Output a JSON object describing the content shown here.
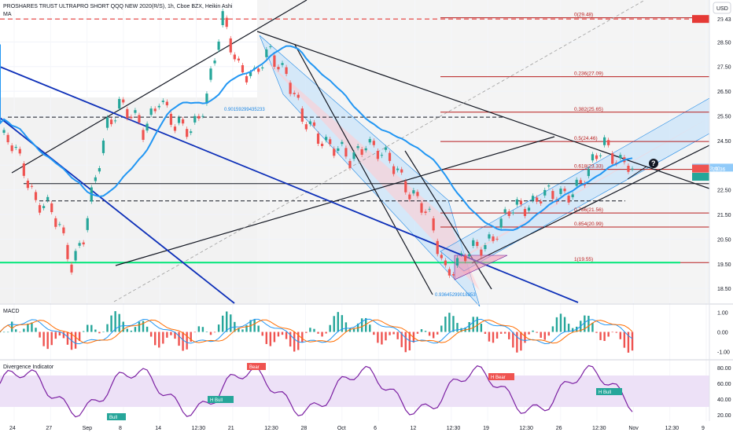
{
  "header": {
    "title": "PROSHARES TRUST ULTRAPRO SHORT QQQ NEW 2020(R/S), 1h, Cboe BZX, Heikin Ashi",
    "indicator": "MA",
    "currency": "USD"
  },
  "colors": {
    "up": "#26a69a",
    "down": "#ef5350",
    "ma": "#2196f3",
    "fib": "#b71c1c",
    "channel": "#1e88e5",
    "support": "#00e676",
    "trend_blue": "#0d2fb8",
    "rsi": "#7b1fa2",
    "band": "#ede1f7",
    "macd_line": "#2196f3",
    "signal_line": "#ff6d00"
  },
  "chart_data": [
    {
      "type": "line",
      "name": "price",
      "scale": "right",
      "ylim": [
        17.9,
        30.2
      ],
      "y_ticks": [
        "29.43",
        "28.50",
        "27.50",
        "26.50",
        "25.50",
        "24.50",
        "23.50",
        "22.50",
        "21.50",
        "20.50",
        "19.50",
        "18.50"
      ],
      "x_ticks": [
        "24",
        "27",
        "Sep",
        "8",
        "14",
        "12:30",
        "21",
        "12:30",
        "28",
        "Oct",
        "6",
        "12",
        "12:30",
        "19",
        "12:30",
        "26",
        "12:30",
        "Nov",
        "12:30",
        "9"
      ],
      "x": [
        0,
        3,
        6,
        9,
        12,
        15,
        18,
        21,
        24,
        27,
        30,
        33,
        36,
        40,
        44,
        48,
        52,
        56,
        60,
        64,
        68,
        72,
        76,
        80,
        84,
        88,
        92,
        96,
        100,
        104,
        108,
        112,
        116,
        120,
        124,
        128,
        132,
        136,
        140,
        144,
        148,
        152,
        156,
        159
      ],
      "values": [
        24.6,
        24.2,
        23.4,
        22.1,
        21.7,
        20.9,
        19.6,
        20.6,
        22.8,
        25.2,
        26.1,
        25.4,
        24.8,
        26.4,
        24.9,
        25.0,
        26.3,
        29.3,
        27.6,
        27.0,
        28.1,
        27.3,
        25.2,
        24.8,
        24.2,
        23.6,
        24.6,
        23.8,
        23.3,
        22.3,
        21.2,
        19.3,
        19.6,
        20.1,
        20.7,
        21.5,
        21.9,
        22.3,
        22.1,
        22.6,
        23.1,
        24.4,
        23.7,
        23.36
      ],
      "price_labels": [
        {
          "text": "29.43",
          "value": 29.43,
          "color": "#e53935"
        },
        {
          "text": "Pivot 23.40",
          "value": 23.4,
          "color": "#90caf9"
        },
        {
          "text": "23.36",
          "value": 23.36,
          "color": "#ef5350"
        },
        {
          "text": "23.03",
          "value": 23.03,
          "color": "#26a69a"
        }
      ],
      "fib_levels": [
        {
          "label": "0(29.48)",
          "value": 29.48
        },
        {
          "label": "0.236(27.09)",
          "value": 27.09
        },
        {
          "label": "0.382(25.65)",
          "value": 25.65
        },
        {
          "label": "0.5(24.46)",
          "value": 24.46
        },
        {
          "label": "0.618(23.33)",
          "value": 23.33
        },
        {
          "label": "0.786(21.56)",
          "value": 21.56
        },
        {
          "label": "0.854(20.99)",
          "value": 20.99
        },
        {
          "label": "1(19.55)",
          "value": 19.55
        }
      ],
      "annotations": [
        "0.90159299435233",
        "0.93645299018853"
      ]
    },
    {
      "type": "bar",
      "name": "MACD",
      "title": "MACD",
      "ylim": [
        -1.3,
        1.3
      ],
      "y_ticks": [
        "1.00",
        "0.00",
        "-1.00"
      ]
    },
    {
      "type": "line",
      "name": "Divergence Indicator",
      "title": "Divergence Indicator",
      "ylim": [
        14,
        86
      ],
      "y_ticks": [
        "80.00",
        "60.00",
        "40.00",
        "20.00"
      ],
      "band": [
        30,
        70
      ],
      "labels": [
        "Bear",
        "Bull",
        "H Bull",
        "H Bear",
        "H Bull",
        "Bull"
      ]
    }
  ]
}
